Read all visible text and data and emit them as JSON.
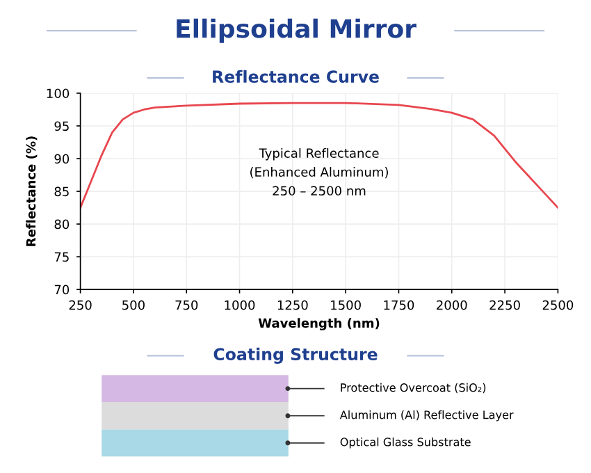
{
  "chart_data": {
    "type": "line",
    "title": "Ellipsoidal Mirror",
    "subtitle": "Reflectance Curve",
    "xlabel": "Wavelength (nm)",
    "ylabel": "Reflectance (%)",
    "x": [
      250,
      300,
      350,
      400,
      450,
      500,
      550,
      600,
      750,
      1000,
      1250,
      1500,
      1750,
      1900,
      2000,
      2100,
      2200,
      2250,
      2300,
      2400,
      2500
    ],
    "series": [
      {
        "color": "#e8474f",
        "values": [
          82.5,
          86.5,
          90.5,
          94.0,
          96.0,
          97.0,
          97.5,
          97.8,
          98.1,
          98.4,
          98.5,
          98.5,
          98.2,
          97.6,
          97.0,
          96.0,
          93.5,
          91.5,
          89.5,
          86.0,
          82.5
        ]
      }
    ],
    "xlim": [
      250,
      2500
    ],
    "xticks": [
      250,
      500,
      750,
      1000,
      1250,
      1500,
      1750,
      2000,
      2250,
      2500
    ],
    "ylim": [
      70,
      100
    ],
    "yticks": [
      70,
      75,
      80,
      85,
      90,
      95,
      100
    ],
    "grid": true,
    "marker": "none",
    "line_style": "solid",
    "annotations": [
      "Typical Reflectance\n(Enhanced Aluminum)\n250 – 2500 nm",
      "Coating Structure",
      "Protective Overcoat (SiO₂)",
      "Aluminum (Al) Reflective Layer",
      "Optical Glass Substrate"
    ]
  }
}
